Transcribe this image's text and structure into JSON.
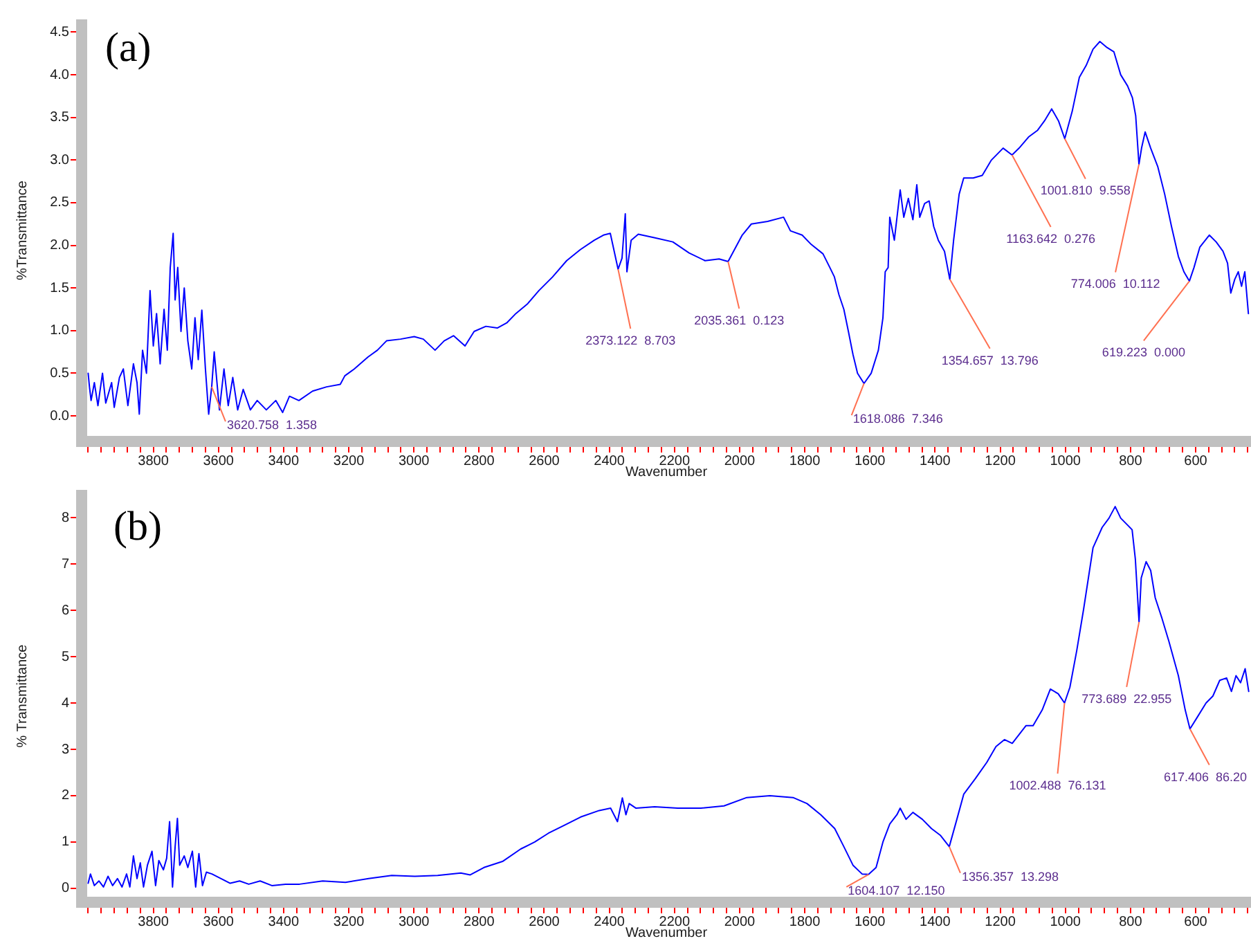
{
  "chart_data": [
    {
      "type": "line",
      "title": "(a)",
      "xlabel": "Wavenumber",
      "ylabel": "%Transmittance",
      "xlim": [
        4020,
        430
      ],
      "ylim": [
        -0.3,
        4.65
      ],
      "xticks": [
        {
          "value": 4000,
          "label": null
        },
        {
          "value": 3960,
          "label": null
        },
        {
          "value": 3920,
          "label": null
        },
        {
          "value": 3880,
          "label": null
        },
        {
          "value": 3840,
          "label": null
        },
        3800,
        {
          "value": 3760,
          "label": null
        },
        {
          "value": 3720,
          "label": null
        },
        {
          "value": 3680,
          "label": null
        },
        {
          "value": 3640,
          "label": null
        },
        3600,
        {
          "value": 3560,
          "label": null
        },
        {
          "value": 3520,
          "label": null
        },
        {
          "value": 3480,
          "label": null
        },
        {
          "value": 3440,
          "label": null
        },
        3400,
        {
          "value": 3360,
          "label": null
        },
        {
          "value": 3320,
          "label": null
        },
        {
          "value": 3280,
          "label": null
        },
        {
          "value": 3240,
          "label": null
        },
        3200,
        {
          "value": 3160,
          "label": null
        },
        {
          "value": 3120,
          "label": null
        },
        {
          "value": 3080,
          "label": null
        },
        {
          "value": 3040,
          "label": null
        },
        3000,
        {
          "value": 2960,
          "label": null
        },
        {
          "value": 2920,
          "label": null
        },
        {
          "value": 2880,
          "label": null
        },
        {
          "value": 2840,
          "label": null
        },
        2800,
        {
          "value": 2760,
          "label": null
        },
        {
          "value": 2720,
          "label": null
        },
        {
          "value": 2680,
          "label": null
        },
        {
          "value": 2640,
          "label": null
        },
        2600,
        {
          "value": 2560,
          "label": null
        },
        {
          "value": 2520,
          "label": null
        },
        {
          "value": 2480,
          "label": null
        },
        {
          "value": 2440,
          "label": null
        },
        2400,
        {
          "value": 2360,
          "label": null
        },
        {
          "value": 2320,
          "label": null
        },
        {
          "value": 2280,
          "label": null
        },
        {
          "value": 2240,
          "label": null
        },
        2200,
        {
          "value": 2160,
          "label": null
        },
        {
          "value": 2120,
          "label": null
        },
        {
          "value": 2080,
          "label": null
        },
        {
          "value": 2040,
          "label": null
        },
        2000,
        {
          "value": 1960,
          "label": null
        },
        {
          "value": 1920,
          "label": null
        },
        {
          "value": 1880,
          "label": null
        },
        {
          "value": 1840,
          "label": null
        },
        1800,
        {
          "value": 1760,
          "label": null
        },
        {
          "value": 1720,
          "label": null
        },
        {
          "value": 1680,
          "label": null
        },
        {
          "value": 1640,
          "label": null
        },
        1600,
        {
          "value": 1560,
          "label": null
        },
        {
          "value": 1520,
          "label": null
        },
        {
          "value": 1480,
          "label": null
        },
        {
          "value": 1440,
          "label": null
        },
        1400,
        {
          "value": 1360,
          "label": null
        },
        {
          "value": 1320,
          "label": null
        },
        {
          "value": 1280,
          "label": null
        },
        {
          "value": 1240,
          "label": null
        },
        1200,
        {
          "value": 1160,
          "label": null
        },
        {
          "value": 1120,
          "label": null
        },
        {
          "value": 1080,
          "label": null
        },
        {
          "value": 1040,
          "label": null
        },
        1000,
        {
          "value": 960,
          "label": null
        },
        {
          "value": 920,
          "label": null
        },
        {
          "value": 880,
          "label": null
        },
        {
          "value": 840,
          "label": null
        },
        800,
        {
          "value": 760,
          "label": null
        },
        {
          "value": 720,
          "label": null
        },
        {
          "value": 680,
          "label": null
        },
        {
          "value": 640,
          "label": null
        },
        600,
        {
          "value": 560,
          "label": null
        },
        {
          "value": 520,
          "label": null
        },
        {
          "value": 480,
          "label": null
        },
        {
          "value": 440,
          "label": null
        }
      ],
      "yticks": [
        {
          "value": 0,
          "label": "0.0"
        },
        0.5,
        {
          "value": 1,
          "label": "1.0"
        },
        1.5,
        {
          "value": 2,
          "label": "2.0"
        },
        2.5,
        {
          "value": 3,
          "label": "3.0"
        },
        3.5,
        {
          "value": 4,
          "label": "4.0"
        },
        4.5
      ],
      "series": [
        {
          "color": "#0000ff",
          "x": [
            4000,
            3996,
            3991,
            3981,
            3970,
            3956,
            3946,
            3928,
            3920,
            3904,
            3892,
            3878,
            3861,
            3850,
            3843,
            3833,
            3821,
            3810,
            3800,
            3790,
            3779,
            3767,
            3757,
            3748,
            3739,
            3733,
            3725,
            3715,
            3705,
            3694,
            3682,
            3672,
            3662,
            3651,
            3640,
            3630,
            3620.758,
            3613,
            3597,
            3583,
            3570,
            3556,
            3541,
            3524,
            3502,
            3481,
            3453,
            3424,
            3403,
            3382,
            3353,
            3311,
            3268,
            3226,
            3212,
            3183,
            3141,
            3112,
            3084,
            3041,
            2999,
            2971,
            2935,
            2907,
            2878,
            2843,
            2815,
            2779,
            2744,
            2715,
            2687,
            2652,
            2616,
            2574,
            2531,
            2489,
            2446,
            2418,
            2397,
            2373.122,
            2361,
            2351,
            2346,
            2333,
            2311,
            2262,
            2205,
            2155,
            2106,
            2063,
            2035.361,
            1992,
            1964,
            1914,
            1865,
            1844,
            1808,
            1780,
            1744,
            1723,
            1709,
            1695,
            1680,
            1666,
            1652,
            1638,
            1618.086,
            1596,
            1574,
            1560,
            1553,
            1544,
            1539,
            1525,
            1507,
            1496,
            1482,
            1468,
            1456,
            1447,
            1432,
            1418,
            1404,
            1390,
            1371,
            1354.657,
            1343,
            1326,
            1312,
            1283,
            1255,
            1227,
            1191,
            1163.642,
            1142,
            1113,
            1085,
            1064,
            1042,
            1021,
            1001.81,
            979,
            957,
            936,
            915,
            894,
            872,
            851,
            830,
            809,
            794,
            784,
            774.006,
            766,
            755,
            738,
            716,
            695,
            674,
            653,
            636,
            619.223,
            605,
            587,
            558,
            537,
            516,
            502,
            492,
            480,
            469,
            459,
            449,
            438
          ],
          "values": [
            0.5,
            0.34,
            0.18,
            0.39,
            0.12,
            0.5,
            0.15,
            0.39,
            0.1,
            0.45,
            0.55,
            0.12,
            0.61,
            0.39,
            0.02,
            0.77,
            0.5,
            1.47,
            0.82,
            1.2,
            0.61,
            1.25,
            0.77,
            1.74,
            2.14,
            1.36,
            1.74,
            0.99,
            1.5,
            0.88,
            0.55,
            1.15,
            0.66,
            1.24,
            0.55,
            0.02,
            0.34,
            0.75,
            0.07,
            0.55,
            0.12,
            0.45,
            0.07,
            0.31,
            0.07,
            0.18,
            0.07,
            0.18,
            0.04,
            0.23,
            0.18,
            0.29,
            0.34,
            0.37,
            0.47,
            0.55,
            0.69,
            0.77,
            0.88,
            0.9,
            0.93,
            0.9,
            0.77,
            0.88,
            0.94,
            0.82,
            0.99,
            1.05,
            1.03,
            1.09,
            1.2,
            1.31,
            1.47,
            1.63,
            1.82,
            1.95,
            2.06,
            2.12,
            2.14,
            1.72,
            1.85,
            2.37,
            1.69,
            2.06,
            2.13,
            2.09,
            2.04,
            1.91,
            1.82,
            1.84,
            1.81,
            2.12,
            2.25,
            2.28,
            2.33,
            2.17,
            2.12,
            2.01,
            1.9,
            1.74,
            1.63,
            1.42,
            1.25,
            0.99,
            0.72,
            0.5,
            0.38,
            0.5,
            0.77,
            1.15,
            1.69,
            1.74,
            2.33,
            2.06,
            2.65,
            2.33,
            2.55,
            2.3,
            2.71,
            2.33,
            2.49,
            2.52,
            2.22,
            2.06,
            1.93,
            1.6,
            2.06,
            2.6,
            2.79,
            2.79,
            2.82,
            3.0,
            3.14,
            3.06,
            3.14,
            3.27,
            3.35,
            3.46,
            3.6,
            3.46,
            3.25,
            3.57,
            3.97,
            4.11,
            4.3,
            4.39,
            4.32,
            4.27,
            4.0,
            3.87,
            3.73,
            3.52,
            2.95,
            3.14,
            3.33,
            3.14,
            2.92,
            2.6,
            2.22,
            1.87,
            1.69,
            1.58,
            1.74,
            1.98,
            2.12,
            2.04,
            1.93,
            1.79,
            1.44,
            1.6,
            1.69,
            1.52,
            1.69,
            1.2
          ]
        }
      ],
      "annotations": [
        {
          "text": "3620.758  1.358",
          "x": 3620.758,
          "y": 0.34
        },
        {
          "text": "2373.122  8.703",
          "x": 2373.122,
          "y": 1.72
        },
        {
          "text": "2035.361  0.123",
          "x": 2035.361,
          "y": 1.81
        },
        {
          "text": "1618.086  7.346",
          "x": 1618.086,
          "y": 0.38
        },
        {
          "text": "1354.657  13.796",
          "x": 1354.657,
          "y": 1.6
        },
        {
          "text": "1163.642  0.276",
          "x": 1163.642,
          "y": 3.06
        },
        {
          "text": "1001.810  9.558",
          "x": 1001.81,
          "y": 3.25
        },
        {
          "text": "774.006  10.112",
          "x": 774.006,
          "y": 2.95
        },
        {
          "text": "619.223  0.000",
          "x": 619.223,
          "y": 1.58
        }
      ]
    },
    {
      "type": "line",
      "title": "(b)",
      "xlabel": "Wavenumber",
      "ylabel": "% Transmittance",
      "xlim": [
        4020,
        430
      ],
      "ylim": [
        -0.3,
        8.6
      ],
      "xticks": [
        {
          "value": 4000,
          "label": null
        },
        {
          "value": 3960,
          "label": null
        },
        {
          "value": 3920,
          "label": null
        },
        {
          "value": 3880,
          "label": null
        },
        {
          "value": 3840,
          "label": null
        },
        3800,
        {
          "value": 3760,
          "label": null
        },
        {
          "value": 3720,
          "label": null
        },
        {
          "value": 3680,
          "label": null
        },
        {
          "value": 3640,
          "label": null
        },
        3600,
        {
          "value": 3560,
          "label": null
        },
        {
          "value": 3520,
          "label": null
        },
        {
          "value": 3480,
          "label": null
        },
        {
          "value": 3440,
          "label": null
        },
        3400,
        {
          "value": 3360,
          "label": null
        },
        {
          "value": 3320,
          "label": null
        },
        {
          "value": 3280,
          "label": null
        },
        {
          "value": 3240,
          "label": null
        },
        3200,
        {
          "value": 3160,
          "label": null
        },
        {
          "value": 3120,
          "label": null
        },
        {
          "value": 3080,
          "label": null
        },
        {
          "value": 3040,
          "label": null
        },
        3000,
        {
          "value": 2960,
          "label": null
        },
        {
          "value": 2920,
          "label": null
        },
        {
          "value": 2880,
          "label": null
        },
        {
          "value": 2840,
          "label": null
        },
        2800,
        {
          "value": 2760,
          "label": null
        },
        {
          "value": 2720,
          "label": null
        },
        {
          "value": 2680,
          "label": null
        },
        {
          "value": 2640,
          "label": null
        },
        2600,
        {
          "value": 2560,
          "label": null
        },
        {
          "value": 2520,
          "label": null
        },
        {
          "value": 2480,
          "label": null
        },
        {
          "value": 2440,
          "label": null
        },
        2400,
        {
          "value": 2360,
          "label": null
        },
        {
          "value": 2320,
          "label": null
        },
        {
          "value": 2280,
          "label": null
        },
        {
          "value": 2240,
          "label": null
        },
        2200,
        {
          "value": 2160,
          "label": null
        },
        {
          "value": 2120,
          "label": null
        },
        {
          "value": 2080,
          "label": null
        },
        {
          "value": 2040,
          "label": null
        },
        2000,
        {
          "value": 1960,
          "label": null
        },
        {
          "value": 1920,
          "label": null
        },
        {
          "value": 1880,
          "label": null
        },
        {
          "value": 1840,
          "label": null
        },
        1800,
        {
          "value": 1760,
          "label": null
        },
        {
          "value": 1720,
          "label": null
        },
        {
          "value": 1680,
          "label": null
        },
        {
          "value": 1640,
          "label": null
        },
        1600,
        {
          "value": 1560,
          "label": null
        },
        {
          "value": 1520,
          "label": null
        },
        {
          "value": 1480,
          "label": null
        },
        {
          "value": 1440,
          "label": null
        },
        1400,
        {
          "value": 1360,
          "label": null
        },
        {
          "value": 1320,
          "label": null
        },
        {
          "value": 1280,
          "label": null
        },
        {
          "value": 1240,
          "label": null
        },
        1200,
        {
          "value": 1160,
          "label": null
        },
        {
          "value": 1120,
          "label": null
        },
        {
          "value": 1080,
          "label": null
        },
        {
          "value": 1040,
          "label": null
        },
        1000,
        {
          "value": 960,
          "label": null
        },
        {
          "value": 920,
          "label": null
        },
        {
          "value": 880,
          "label": null
        },
        {
          "value": 840,
          "label": null
        },
        800,
        {
          "value": 760,
          "label": null
        },
        {
          "value": 720,
          "label": null
        },
        {
          "value": 680,
          "label": null
        },
        {
          "value": 640,
          "label": null
        },
        600,
        {
          "value": 560,
          "label": null
        },
        {
          "value": 520,
          "label": null
        },
        {
          "value": 480,
          "label": null
        },
        {
          "value": 440,
          "label": null
        }
      ],
      "yticks": [
        0,
        1,
        2,
        3,
        4,
        5,
        6,
        7,
        8
      ],
      "series": [
        {
          "color": "#0000ff",
          "x": [
            4000,
            3993,
            3981,
            3967,
            3953,
            3939,
            3925,
            3910,
            3896,
            3882,
            3872,
            3861,
            3850,
            3840,
            3830,
            3818,
            3804,
            3793,
            3783,
            3769,
            3759,
            3750,
            3741,
            3733,
            3726,
            3719,
            3705,
            3694,
            3680,
            3670,
            3660,
            3649,
            3637,
            3620,
            3592,
            3564,
            3535,
            3507,
            3472,
            3436,
            3394,
            3351,
            3280,
            3210,
            3139,
            3068,
            2997,
            2927,
            2856,
            2827,
            2785,
            2728,
            2672,
            2629,
            2587,
            2544,
            2488,
            2431,
            2396,
            2375,
            2360,
            2349,
            2339,
            2318,
            2261,
            2190,
            2119,
            2048,
            1978,
            1907,
            1836,
            1793,
            1751,
            1708,
            1680,
            1652,
            1624,
            1604.107,
            1581,
            1560,
            1539,
            1517,
            1507,
            1489,
            1468,
            1439,
            1411,
            1383,
            1356.357,
            1333,
            1312,
            1276,
            1241,
            1213,
            1187,
            1163,
            1121,
            1099,
            1071,
            1046,
            1022,
            1002.488,
            986,
            965,
            944,
            915,
            887,
            866,
            847,
            830,
            809,
            795,
            785,
            773.689,
            767,
            752,
            738,
            724,
            703,
            682,
            653,
            632,
            617.406,
            597,
            568,
            547,
            526,
            505,
            490,
            476,
            462,
            448,
            437
          ],
          "values": [
            0.11,
            0.31,
            0.06,
            0.16,
            0.03,
            0.26,
            0.06,
            0.21,
            0.03,
            0.31,
            0.03,
            0.7,
            0.21,
            0.55,
            0.03,
            0.5,
            0.8,
            0.06,
            0.6,
            0.4,
            0.65,
            1.44,
            0.03,
            0.9,
            1.51,
            0.5,
            0.7,
            0.45,
            0.8,
            0.03,
            0.75,
            0.06,
            0.35,
            0.31,
            0.21,
            0.11,
            0.16,
            0.09,
            0.16,
            0.06,
            0.09,
            0.09,
            0.16,
            0.13,
            0.21,
            0.28,
            0.26,
            0.28,
            0.33,
            0.29,
            0.45,
            0.58,
            0.85,
            1.0,
            1.19,
            1.34,
            1.54,
            1.68,
            1.73,
            1.44,
            1.95,
            1.59,
            1.83,
            1.73,
            1.76,
            1.73,
            1.73,
            1.78,
            1.96,
            2.0,
            1.96,
            1.83,
            1.59,
            1.29,
            0.9,
            0.5,
            0.31,
            0.3,
            0.45,
            1.0,
            1.39,
            1.59,
            1.73,
            1.49,
            1.64,
            1.49,
            1.29,
            1.14,
            0.9,
            1.49,
            2.03,
            2.37,
            2.72,
            3.06,
            3.21,
            3.13,
            3.51,
            3.51,
            3.85,
            4.3,
            4.2,
            4.0,
            4.34,
            5.13,
            6.02,
            7.35,
            7.79,
            7.99,
            8.24,
            7.99,
            7.84,
            7.74,
            7.1,
            5.75,
            6.7,
            7.05,
            6.86,
            6.27,
            5.82,
            5.33,
            4.59,
            3.85,
            3.44,
            3.67,
            4.0,
            4.15,
            4.49,
            4.54,
            4.25,
            4.59,
            4.44,
            4.74,
            4.25
          ]
        }
      ],
      "annotations": [
        {
          "text": "1604.107  12.150",
          "x": 1604.107,
          "y": 0.3
        },
        {
          "text": "1356.357  13.298",
          "x": 1356.357,
          "y": 0.9
        },
        {
          "text": "1002.488  76.131",
          "x": 1002.488,
          "y": 4.0
        },
        {
          "text": "773.689  22.955",
          "x": 773.689,
          "y": 5.75
        },
        {
          "text": "617.406  86.20",
          "x": 617.406,
          "y": 3.44
        }
      ]
    }
  ]
}
